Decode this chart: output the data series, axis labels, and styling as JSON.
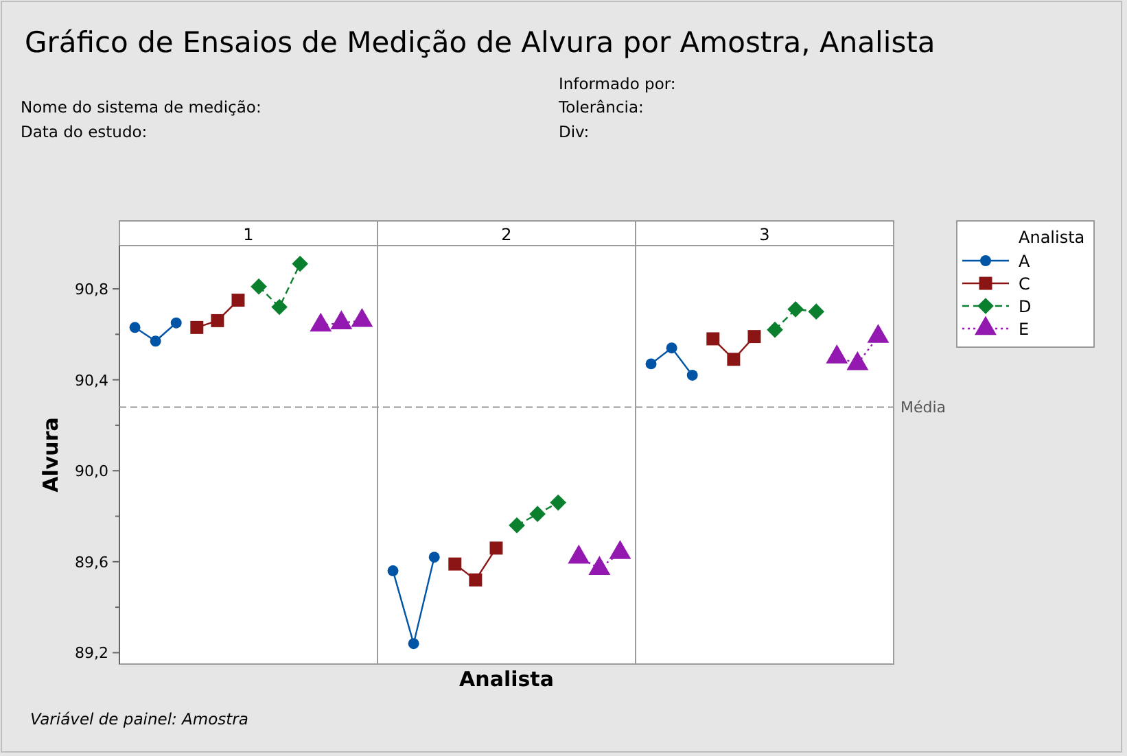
{
  "chart_data": {
    "type": "line",
    "title": "Gráfico de Ensaios de Medição de Alvura por Amostra, Analista",
    "xlabel": "Analista",
    "ylabel": "Alvura",
    "legend": "right",
    "legend_title": "Analista",
    "tick_labels": "y",
    "annotations": [
      "1",
      "2",
      "3",
      "Nome do sistema de medição:",
      "Data do estudo:",
      "Informado por:",
      "Tolerância:",
      "Div:",
      "Variável de painel: Amostra"
    ],
    "categories": [
      null,
      null,
      null,
      null,
      null,
      null,
      null,
      null,
      null,
      null,
      null,
      null,
      null,
      null,
      null,
      null,
      null,
      null,
      null,
      null,
      null,
      null,
      null,
      null,
      null,
      null,
      null,
      null,
      null,
      null,
      null,
      null,
      null,
      null,
      null,
      null
    ],
    "ylim": [
      89.15,
      90.99
    ],
    "yticks": [
      {
        "value": 89.2,
        "label": "89,2"
      },
      {
        "value": 89.4,
        "label": null
      },
      {
        "value": 89.6,
        "label": "89,6"
      },
      {
        "value": 89.8,
        "label": null
      },
      {
        "value": 90.0,
        "label": "90,0"
      },
      {
        "value": 90.2,
        "label": null
      },
      {
        "value": 90.4,
        "label": "90,4"
      },
      {
        "value": 90.6,
        "label": null
      },
      {
        "value": 90.8,
        "label": "90,8"
      }
    ],
    "ref_lines": [
      {
        "axis": "y",
        "value": 90.28,
        "label": "Média",
        "color": "#999999",
        "line_style": "dashed"
      }
    ],
    "series": [
      {
        "name": "A",
        "color": "#0054a6",
        "marker": "circle",
        "line_style": "solid",
        "values": [
          90.63,
          90.57,
          90.65,
          null,
          null,
          null,
          null,
          null,
          null,
          null,
          null,
          null,
          89.56,
          89.24,
          89.62,
          null,
          null,
          null,
          null,
          null,
          null,
          null,
          null,
          null,
          90.47,
          90.54,
          90.42,
          null,
          null,
          null,
          null,
          null,
          null,
          null,
          null,
          null
        ]
      },
      {
        "name": "C",
        "color": "#8b1515",
        "marker": "square",
        "line_style": "solid",
        "values": [
          null,
          null,
          null,
          90.63,
          90.66,
          90.75,
          null,
          null,
          null,
          null,
          null,
          null,
          null,
          null,
          null,
          89.59,
          89.52,
          89.66,
          null,
          null,
          null,
          null,
          null,
          null,
          null,
          null,
          null,
          90.58,
          90.49,
          90.59,
          null,
          null,
          null,
          null,
          null,
          null
        ]
      },
      {
        "name": "D",
        "color": "#0a7f2e",
        "marker": "diamond",
        "line_style": "dashed",
        "values": [
          null,
          null,
          null,
          null,
          null,
          null,
          90.81,
          90.72,
          90.91,
          null,
          null,
          null,
          null,
          null,
          null,
          null,
          null,
          null,
          89.76,
          89.81,
          89.86,
          null,
          null,
          null,
          null,
          null,
          null,
          null,
          null,
          null,
          90.62,
          90.71,
          90.7,
          null,
          null,
          null
        ]
      },
      {
        "name": "E",
        "color": "#9218b0",
        "marker": "triangle",
        "line_style": "dotted",
        "values": [
          null,
          null,
          null,
          null,
          null,
          null,
          null,
          null,
          null,
          90.64,
          90.65,
          90.66,
          null,
          null,
          null,
          null,
          null,
          null,
          null,
          null,
          null,
          89.62,
          89.57,
          89.64,
          null,
          null,
          null,
          null,
          null,
          null,
          null,
          null,
          null,
          90.5,
          90.47,
          90.59
        ]
      }
    ]
  }
}
